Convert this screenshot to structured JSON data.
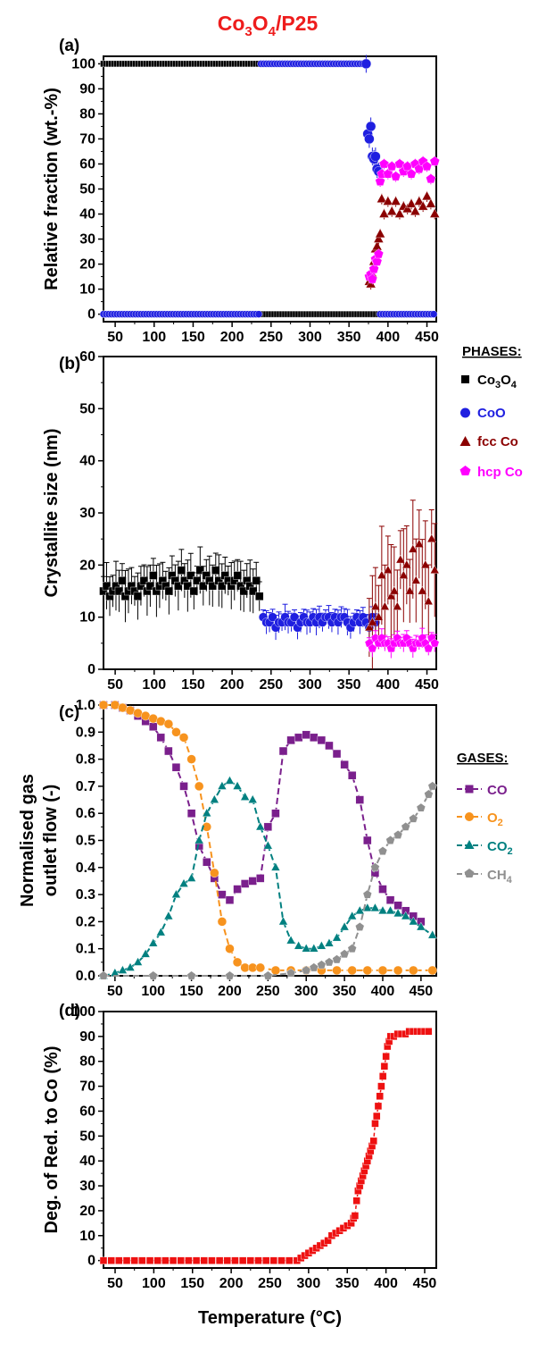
{
  "figure_title_main": "Co",
  "figure_title_sub1": "3",
  "figure_title_mid": "O",
  "figure_title_sub2": "4",
  "figure_title_tail": "/P25",
  "phases_legend_title": "PHASES:",
  "gases_legend_title": "GASES:",
  "colors": {
    "title": "#ee1c1c",
    "Co3O4": "#000000",
    "CoO": "#1f1fe0",
    "fcc Co": "#8b0000",
    "hcp Co": "#ff00ff",
    "CO": "#7a1f8c",
    "O2": "#f7931e",
    "CO2": "#008080",
    "CH4": "#909090",
    "DOR": "#ee1111"
  },
  "chart_data": [
    {
      "type": "scatter",
      "panel": "(a)",
      "ylabel": "Relative fraction (wt.-%)",
      "xlim": [
        35,
        462
      ],
      "ylim": [
        -3,
        103
      ],
      "xticks": [
        50,
        100,
        150,
        200,
        250,
        300,
        350,
        400,
        450
      ],
      "yticks": [
        0,
        10,
        20,
        30,
        40,
        50,
        60,
        70,
        80,
        90,
        100
      ],
      "series": [
        {
          "name": "Co3O4",
          "marker": "square",
          "segments": [
            {
              "x": [
                35,
                237
              ],
              "y": [
                100,
                100
              ]
            },
            {
              "x": [
                237,
                460
              ],
              "y": [
                0,
                0
              ]
            }
          ]
        },
        {
          "name": "CoO",
          "marker": "circle",
          "segments": [
            {
              "x": [
                35,
                237
              ],
              "y": [
                0,
                0
              ]
            },
            {
              "x": [
                237,
                372
              ],
              "y": [
                100,
                100
              ]
            },
            {
              "x": [
                372,
                374,
                376,
                378,
                380,
                382,
                384,
                386,
                388
              ],
              "y": [
                100,
                72,
                70,
                75,
                63,
                62,
                63,
                58,
                57
              ]
            },
            {
              "x": [
                390,
                460
              ],
              "y": [
                0,
                0
              ]
            }
          ]
        },
        {
          "name": "fcc Co",
          "marker": "triangle",
          "points": {
            "x": [
              376,
              378,
              380,
              382,
              384,
              386,
              388,
              390,
              392,
              395,
              400,
              405,
              410,
              415,
              420,
              425,
              430,
              435,
              440,
              445,
              450,
              455,
              460
            ],
            "y": [
              13,
              12,
              16,
              21,
              26,
              27,
              30,
              32,
              46,
              40,
              45,
              41,
              45,
              40,
              43,
              42,
              44,
              41,
              45,
              43,
              47,
              44,
              40
            ]
          }
        },
        {
          "name": "hcp Co",
          "marker": "pentagon",
          "points": {
            "x": [
              376,
              378,
              380,
              382,
              384,
              386,
              388,
              390,
              392,
              395,
              400,
              405,
              410,
              415,
              420,
              425,
              430,
              435,
              440,
              445,
              450,
              455,
              460
            ],
            "y": [
              15,
              16,
              14,
              18,
              22,
              21,
              24,
              53,
              56,
              60,
              56,
              59,
              55,
              60,
              57,
              59,
              56,
              60,
              58,
              61,
              59,
              54,
              61
            ]
          }
        }
      ]
    },
    {
      "type": "scatter",
      "panel": "(b)",
      "ylabel": "Crystallite size (nm)",
      "xlim": [
        35,
        462
      ],
      "ylim": [
        0,
        60
      ],
      "xticks": [
        50,
        100,
        150,
        200,
        250,
        300,
        350,
        400,
        450
      ],
      "yticks": [
        0,
        10,
        20,
        30,
        40,
        50,
        60
      ],
      "series": [
        {
          "name": "Co3O4",
          "marker": "square",
          "x_start": 35,
          "x_step": 4,
          "y": [
            15,
            16,
            14,
            15,
            16,
            15,
            17,
            14,
            15,
            16,
            15,
            14,
            16,
            17,
            15,
            16,
            18,
            15,
            16,
            17,
            16,
            15,
            18,
            17,
            16,
            19,
            17,
            16,
            18,
            15,
            17,
            19,
            16,
            18,
            17,
            16,
            19,
            17,
            16,
            18,
            17,
            16,
            17,
            18,
            16,
            15,
            17,
            16,
            15,
            17,
            14
          ],
          "err": 4
        },
        {
          "name": "CoO",
          "marker": "circle",
          "x_start": 240,
          "x_step": 4,
          "y": [
            10,
            9,
            9,
            10,
            8,
            9,
            9,
            10,
            9,
            9,
            10,
            8,
            9,
            10,
            9,
            9,
            10,
            9,
            10,
            9,
            10,
            10,
            9,
            10,
            9,
            10,
            10,
            9,
            8,
            9,
            10,
            9,
            10,
            9,
            8,
            10,
            9
          ],
          "err": 2
        },
        {
          "name": "fcc Co",
          "marker": "triangle",
          "x": [
            376,
            380,
            384,
            388,
            392,
            396,
            400,
            404,
            408,
            412,
            416,
            420,
            424,
            428,
            432,
            436,
            440,
            444,
            448,
            452,
            456,
            460
          ],
          "y": [
            8,
            9,
            12,
            10,
            18,
            12,
            19,
            14,
            15,
            12,
            21,
            18,
            20,
            15,
            23,
            17,
            24,
            15,
            20,
            13,
            25,
            19
          ],
          "err": 8
        },
        {
          "name": "hcp Co",
          "marker": "pentagon",
          "x": [
            376,
            380,
            384,
            388,
            392,
            396,
            400,
            404,
            408,
            412,
            416,
            420,
            424,
            428,
            432,
            436,
            440,
            444,
            448,
            452,
            456,
            460
          ],
          "y": [
            5,
            4,
            6,
            5,
            6,
            5,
            5,
            4,
            5,
            6,
            5,
            5,
            6,
            5,
            4,
            5,
            5,
            6,
            5,
            4,
            6,
            5
          ],
          "err": 1.5
        }
      ]
    },
    {
      "type": "line",
      "panel": "(c)",
      "ylabel_lines": [
        "Normalised gas",
        "outlet flow (-)"
      ],
      "xlim": [
        35,
        470
      ],
      "ylim": [
        0,
        1.0
      ],
      "xticks": [
        50,
        100,
        150,
        200,
        250,
        300,
        350,
        400,
        450
      ],
      "yticks": [
        0.0,
        0.1,
        0.2,
        0.3,
        0.4,
        0.5,
        0.6,
        0.7,
        0.8,
        0.9,
        1.0
      ],
      "series": [
        {
          "name": "CO",
          "marker": "square",
          "x": [
            35,
            50,
            60,
            70,
            80,
            90,
            100,
            110,
            120,
            130,
            140,
            150,
            160,
            170,
            180,
            190,
            200,
            210,
            220,
            230,
            240,
            250,
            260,
            270,
            280,
            290,
            300,
            310,
            320,
            330,
            340,
            350,
            360,
            370,
            380,
            390,
            400,
            410,
            420,
            430,
            440,
            450
          ],
          "y": [
            1.0,
            1.0,
            0.99,
            0.98,
            0.96,
            0.94,
            0.92,
            0.88,
            0.83,
            0.77,
            0.7,
            0.6,
            0.48,
            0.42,
            0.36,
            0.3,
            0.28,
            0.32,
            0.34,
            0.35,
            0.36,
            0.55,
            0.6,
            0.83,
            0.87,
            0.88,
            0.89,
            0.88,
            0.87,
            0.85,
            0.82,
            0.78,
            0.74,
            0.65,
            0.5,
            0.38,
            0.32,
            0.28,
            0.26,
            0.24,
            0.22,
            0.2
          ]
        },
        {
          "name": "O2",
          "marker": "circle",
          "x": [
            35,
            50,
            60,
            70,
            80,
            90,
            100,
            110,
            120,
            130,
            140,
            150,
            160,
            170,
            180,
            190,
            200,
            210,
            220,
            230,
            240,
            260,
            280,
            300,
            320,
            340,
            360,
            380,
            400,
            420,
            440,
            465
          ],
          "y": [
            1.0,
            1.0,
            0.99,
            0.98,
            0.97,
            0.96,
            0.95,
            0.94,
            0.93,
            0.9,
            0.88,
            0.8,
            0.7,
            0.55,
            0.38,
            0.2,
            0.1,
            0.05,
            0.03,
            0.03,
            0.03,
            0.02,
            0.02,
            0.02,
            0.02,
            0.02,
            0.02,
            0.02,
            0.02,
            0.02,
            0.02,
            0.02
          ]
        },
        {
          "name": "CO2",
          "marker": "triangle",
          "x": [
            35,
            50,
            60,
            70,
            80,
            90,
            100,
            110,
            120,
            130,
            140,
            150,
            160,
            170,
            180,
            190,
            200,
            210,
            220,
            230,
            240,
            250,
            260,
            270,
            280,
            290,
            300,
            310,
            320,
            330,
            340,
            350,
            360,
            370,
            380,
            390,
            400,
            410,
            420,
            430,
            440,
            450,
            465
          ],
          "y": [
            0.0,
            0.01,
            0.02,
            0.03,
            0.05,
            0.08,
            0.12,
            0.16,
            0.22,
            0.3,
            0.34,
            0.36,
            0.5,
            0.6,
            0.65,
            0.7,
            0.72,
            0.7,
            0.66,
            0.65,
            0.55,
            0.48,
            0.4,
            0.2,
            0.13,
            0.11,
            0.1,
            0.1,
            0.11,
            0.12,
            0.14,
            0.18,
            0.22,
            0.24,
            0.25,
            0.25,
            0.24,
            0.24,
            0.23,
            0.22,
            0.2,
            0.18,
            0.15
          ]
        },
        {
          "name": "CH4",
          "marker": "pentagon",
          "x": [
            35,
            100,
            150,
            200,
            250,
            280,
            300,
            310,
            320,
            330,
            340,
            350,
            360,
            370,
            380,
            390,
            400,
            410,
            420,
            430,
            440,
            450,
            460,
            465
          ],
          "y": [
            0.0,
            0.0,
            0.0,
            0.0,
            0.0,
            0.01,
            0.02,
            0.03,
            0.04,
            0.05,
            0.06,
            0.08,
            0.1,
            0.18,
            0.3,
            0.4,
            0.46,
            0.5,
            0.52,
            0.55,
            0.58,
            0.62,
            0.67,
            0.7
          ]
        }
      ]
    },
    {
      "type": "scatter",
      "panel": "(d)",
      "ylabel": "Deg. of Red. to Co (%)",
      "xlabel": "Temperature (°C)",
      "xlim": [
        35,
        465
      ],
      "ylim": [
        -3,
        100
      ],
      "xticks": [
        50,
        100,
        150,
        200,
        250,
        300,
        350,
        400,
        450
      ],
      "yticks": [
        0,
        10,
        20,
        30,
        40,
        50,
        60,
        70,
        80,
        90,
        100
      ],
      "series": [
        {
          "name": "DOR",
          "marker": "square",
          "x": [
            35,
            45,
            55,
            65,
            75,
            85,
            95,
            105,
            115,
            125,
            135,
            145,
            155,
            165,
            175,
            185,
            195,
            205,
            215,
            225,
            235,
            245,
            255,
            265,
            275,
            285,
            290,
            295,
            300,
            305,
            310,
            315,
            320,
            325,
            330,
            335,
            340,
            345,
            350,
            355,
            358,
            360,
            362,
            364,
            366,
            368,
            370,
            372,
            374,
            376,
            378,
            380,
            382,
            384,
            386,
            388,
            390,
            392,
            394,
            396,
            398,
            400,
            402,
            404,
            406,
            410,
            415,
            420,
            425,
            430,
            435,
            440,
            445,
            450,
            455
          ],
          "y": [
            0,
            0,
            0,
            0,
            0,
            0,
            0,
            0,
            0,
            0,
            0,
            0,
            0,
            0,
            0,
            0,
            0,
            0,
            0,
            0,
            0,
            0,
            0,
            0,
            0,
            0,
            1,
            2,
            3,
            4,
            5,
            6,
            7,
            8,
            10,
            11,
            12,
            13,
            14,
            15,
            17,
            18,
            24,
            28,
            30,
            32,
            34,
            36,
            38,
            40,
            42,
            44,
            46,
            48,
            55,
            58,
            62,
            66,
            70,
            74,
            78,
            82,
            86,
            88,
            90,
            90,
            91,
            91,
            91,
            92,
            92,
            92,
            92,
            92,
            92
          ]
        }
      ]
    }
  ]
}
